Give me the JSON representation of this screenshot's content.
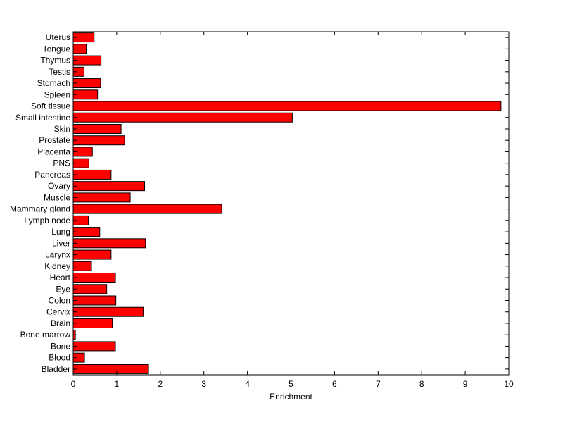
{
  "chart_data": {
    "type": "bar",
    "orientation": "horizontal",
    "title": "",
    "xlabel": "Enrichment",
    "ylabel": "",
    "xlim": [
      0,
      10
    ],
    "xticks": [
      "0",
      "1",
      "2",
      "3",
      "4",
      "5",
      "6",
      "7",
      "8",
      "9",
      "10"
    ],
    "grid": false,
    "bar_color": "#ff0000",
    "categories": [
      "Uterus",
      "Tongue",
      "Thymus",
      "Testis",
      "Stomach",
      "Spleen",
      "Soft tissue",
      "Small intestine",
      "Skin",
      "Prostate",
      "Placenta",
      "PNS",
      "Pancreas",
      "Ovary",
      "Muscle",
      "Mammary gland",
      "Lymph node",
      "Lung",
      "Liver",
      "Larynx",
      "Kidney",
      "Heart",
      "Eye",
      "Colon",
      "Cervix",
      "Brain",
      "Bone marrow",
      "Bone",
      "Blood",
      "Bladder"
    ],
    "values": [
      0.48,
      0.3,
      0.64,
      0.25,
      0.63,
      0.56,
      9.82,
      5.03,
      1.1,
      1.18,
      0.44,
      0.36,
      0.87,
      1.64,
      1.31,
      3.41,
      0.35,
      0.61,
      1.66,
      0.87,
      0.42,
      0.97,
      0.77,
      0.98,
      1.61,
      0.9,
      0.05,
      0.97,
      0.26,
      1.73
    ]
  }
}
